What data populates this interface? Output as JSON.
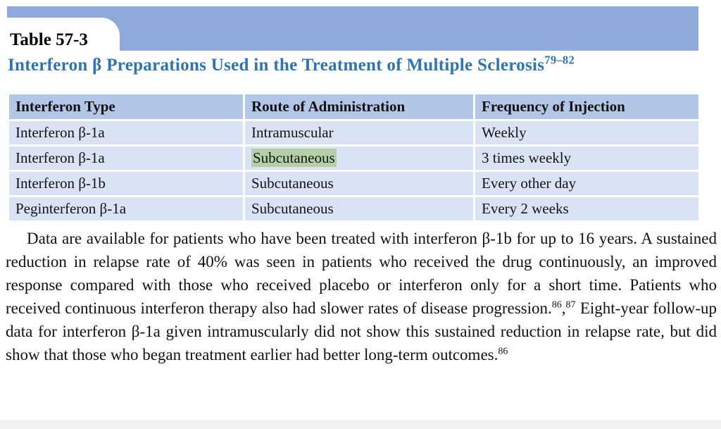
{
  "tab": {
    "label": "Table 57-3"
  },
  "title": {
    "text": "Interferon β Preparations Used in the Treatment of Multiple Sclerosis",
    "superscript": "79–82"
  },
  "table": {
    "columns": [
      "Interferon Type",
      "Route of Administration",
      "Frequency of Injection"
    ],
    "rows": [
      {
        "cells": [
          {
            "text": "Interferon β-1a"
          },
          {
            "text": "Intramuscular"
          },
          {
            "text": "Weekly"
          }
        ]
      },
      {
        "cells": [
          {
            "text": "Interferon β-1a"
          },
          {
            "text": "Subcutaneous",
            "highlight": true
          },
          {
            "text": "3 times weekly"
          }
        ]
      },
      {
        "cells": [
          {
            "text": "Interferon β-1b"
          },
          {
            "text": "Subcutaneous"
          },
          {
            "text": "Every other day"
          }
        ]
      },
      {
        "cells": [
          {
            "text": "Peginterferon β-1a"
          },
          {
            "text": "Subcutaneous"
          },
          {
            "text": "Every 2 weeks"
          }
        ]
      }
    ]
  },
  "paragraph": {
    "segments": [
      {
        "text": "Data are available for patients who have been treated with interferon β-1b for up to 16 years. A sustained reduction in relapse rate of 40% was seen in patients who received the drug continuously, an improved response compared with those who received placebo or interferon only for a short time. Patients who received continuous interferon therapy also had slower rates of disease progression.",
        "sup": false
      },
      {
        "text": "86",
        "sup": true
      },
      {
        "text": ",",
        "sup": false
      },
      {
        "text": "87",
        "sup": true
      },
      {
        "text": " Eight-year follow-up data for interferon β-1a given intramuscularly did not show this sustained reduction in relapse rate, but did show that those who began treatment earlier had better long-term outcomes.",
        "sup": false
      },
      {
        "text": "86",
        "sup": true
      }
    ]
  },
  "colors": {
    "band": "#8EAADB",
    "header_row": "#B4C6E7",
    "data_row": "#DAE3F3",
    "title_text": "#2E74B5",
    "highlight": "#B5D0A8"
  }
}
